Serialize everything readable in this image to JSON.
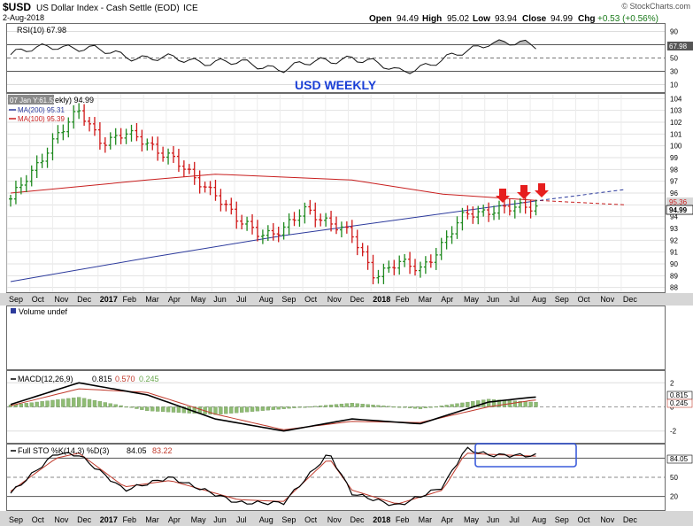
{
  "header": {
    "symbol": "$USD",
    "name": "US Dollar Index - Cash Settle (EOD)",
    "exchange": "ICE",
    "date": "2-Aug-2018",
    "open_label": "Open",
    "open": "94.49",
    "high_label": "High",
    "high": "95.02",
    "low_label": "Low",
    "low": "93.94",
    "close_label": "Close",
    "close": "94.99",
    "chg_label": "Chg",
    "chg": "+0.53 (+0.56%)",
    "watermark": "© StockCharts.com"
  },
  "rsi_panel": {
    "label": "RSI(10) 67.98",
    "last_value": "67.98",
    "annotation": "USD WEEKLY",
    "yticks": [
      "90",
      "70",
      "50",
      "30",
      "10"
    ]
  },
  "price_panel": {
    "tooltip": "07 Jan Y:61.52",
    "legend_close_suffix": "ekly) 94.99",
    "ma200_label": "MA(200) 95.31",
    "ma100_label": "MA(100) 95.39",
    "last_close": "94.99",
    "ma_tag": "95.36",
    "yticks": [
      "104",
      "103",
      "102",
      "101",
      "100",
      "99",
      "98",
      "97",
      "96",
      "95",
      "94",
      "93",
      "92",
      "91",
      "90",
      "89",
      "88"
    ]
  },
  "volume_panel": {
    "label": "Volume undef"
  },
  "macd_panel": {
    "label_prefix": "MACD(12,26,9)",
    "macd": "0.815",
    "signal": "0.570",
    "hist": "0.245",
    "yticks": [
      "2",
      "0",
      "-2"
    ]
  },
  "sto_panel": {
    "label_prefix": "Full STO %K(14,3) %D(3)",
    "k": "84.05",
    "d": "83.22",
    "yticks": [
      "80",
      "50",
      "20"
    ]
  },
  "x_axis": {
    "labels": [
      "Sep",
      "Oct",
      "Nov",
      "Dec",
      "2017",
      "Feb",
      "Mar",
      "Apr",
      "May",
      "Jun",
      "Jul",
      "Aug",
      "Sep",
      "Oct",
      "Nov",
      "Dec",
      "2018",
      "Feb",
      "Mar",
      "Apr",
      "May",
      "Jun",
      "Jul",
      "Aug",
      "Sep",
      "Oct",
      "Nov",
      "Dec"
    ]
  },
  "colors": {
    "bar_up": "#1f8a1f",
    "bar_down": "#d01818",
    "ma200": "#2c3a9c",
    "ma100": "#c81e1e",
    "rsi": "#111111",
    "macd_signal": "#c0392b",
    "hist": "#8fbc74",
    "arrow": "#e61e1e",
    "annotation": "#1a3fd6",
    "box": "#3b5bdb"
  },
  "chart_data": {
    "type": "line",
    "title": "$USD US Dollar Index - Cash Settle (EOD) ICE",
    "timeframe": "weekly",
    "x_range": [
      "Sep 2016",
      "Dec 2018"
    ],
    "ylim_price": [
      88,
      104
    ],
    "price_weekly_close": {
      "x": [
        "2016-09",
        "2016-10",
        "2016-11",
        "2016-12",
        "2017-01",
        "2017-02",
        "2017-03",
        "2017-04",
        "2017-05",
        "2017-06",
        "2017-07",
        "2017-08",
        "2017-09",
        "2017-10",
        "2017-11",
        "2017-12",
        "2018-01",
        "2018-02",
        "2018-03",
        "2018-04",
        "2018-05",
        "2018-06",
        "2018-07",
        "2018-08"
      ],
      "y": [
        95.5,
        97.8,
        101.0,
        102.8,
        100.4,
        101.0,
        100.2,
        99.2,
        97.2,
        96.1,
        93.5,
        92.6,
        92.9,
        94.6,
        93.6,
        92.3,
        89.1,
        90.0,
        89.6,
        91.7,
        94.2,
        94.6,
        94.6,
        94.99
      ]
    },
    "series": [
      {
        "name": "MA(200)",
        "x": [
          "2016-09",
          "2017-03",
          "2017-09",
          "2018-03",
          "2018-08",
          "2018-12"
        ],
        "y": [
          88.5,
          90.5,
          92.4,
          94.0,
          95.31,
          96.3
        ]
      },
      {
        "name": "MA(100)",
        "x": [
          "2016-09",
          "2017-03",
          "2017-06",
          "2017-12",
          "2018-04",
          "2018-08",
          "2018-12"
        ],
        "y": [
          96.0,
          97.1,
          97.6,
          97.1,
          95.9,
          95.39,
          95.0
        ]
      }
    ],
    "rsi": {
      "x": [
        "2016-09",
        "2016-11",
        "2017-01",
        "2017-03",
        "2017-06",
        "2017-09",
        "2017-12",
        "2018-02",
        "2018-04",
        "2018-06",
        "2018-08"
      ],
      "y": [
        55,
        70,
        60,
        50,
        45,
        35,
        52,
        30,
        45,
        75,
        67.98
      ],
      "ylim": [
        0,
        100
      ]
    },
    "macd": {
      "x": [
        "2016-09",
        "2016-12",
        "2017-03",
        "2017-06",
        "2017-09",
        "2017-12",
        "2018-03",
        "2018-06",
        "2018-08"
      ],
      "macd": [
        0.2,
        2.0,
        1.0,
        -1.0,
        -2.0,
        -1.0,
        -1.4,
        0.4,
        0.815
      ],
      "signal": [
        0.1,
        1.5,
        1.2,
        -0.6,
        -1.9,
        -1.2,
        -1.3,
        0.0,
        0.57
      ]
    },
    "full_sto": {
      "x": [
        "2016-09",
        "2016-11",
        "2016-12",
        "2017-02",
        "2017-04",
        "2017-07",
        "2017-09",
        "2017-11",
        "2017-12",
        "2018-02",
        "2018-04",
        "2018-05",
        "2018-06",
        "2018-08"
      ],
      "k": [
        25,
        88,
        85,
        30,
        50,
        10,
        10,
        88,
        25,
        5,
        35,
        95,
        85,
        84.05
      ],
      "d": [
        28,
        80,
        88,
        35,
        45,
        15,
        12,
        80,
        30,
        8,
        30,
        88,
        86,
        83.22
      ]
    }
  }
}
